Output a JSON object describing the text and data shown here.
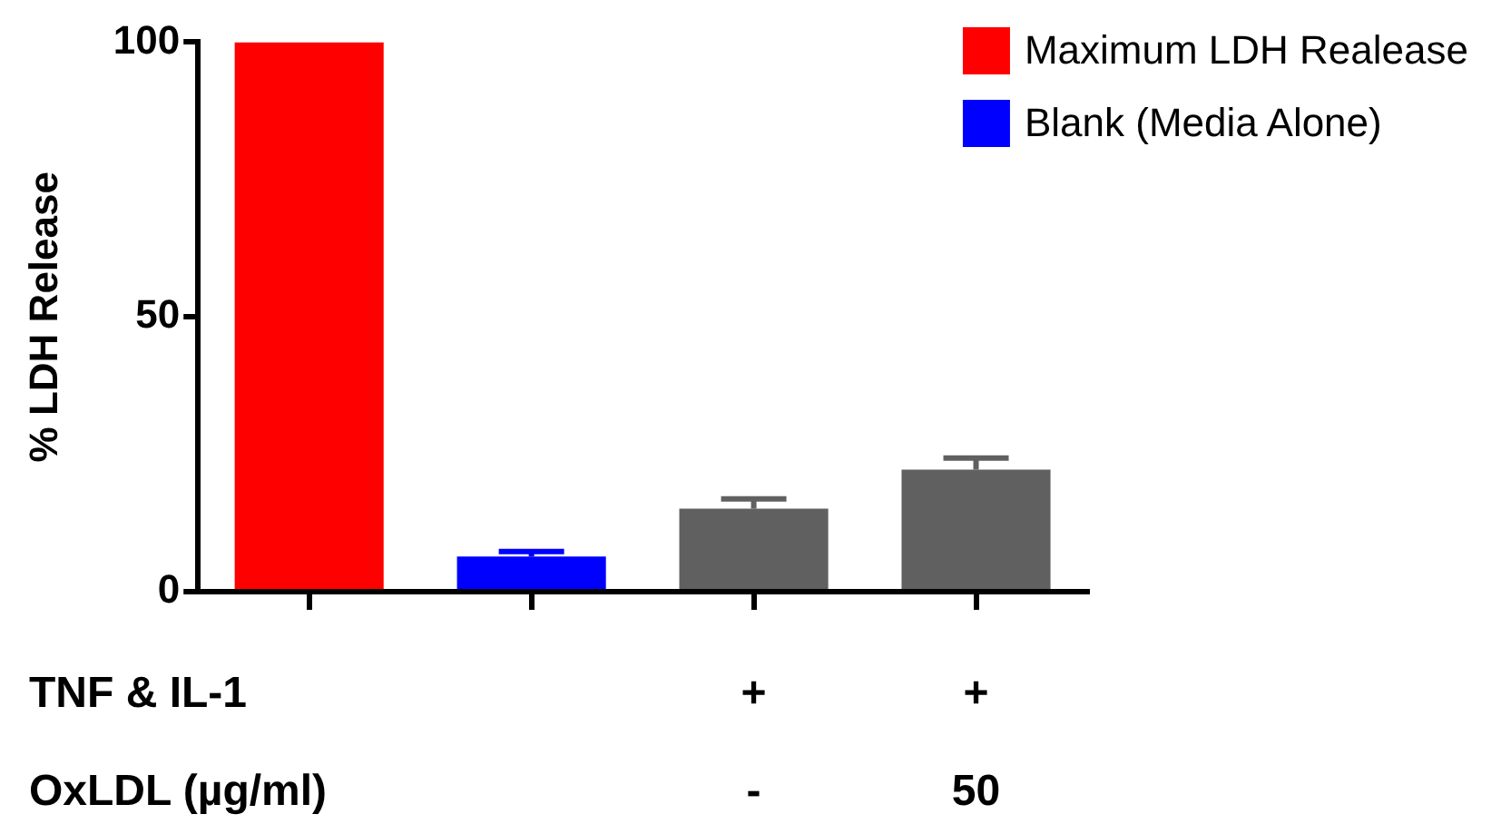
{
  "chart_data": {
    "type": "bar",
    "ylabel": "% LDH Release",
    "categories": [
      null,
      null,
      "+\n-",
      "+\n50"
    ],
    "series": [
      {
        "name": "Maximum LDH Realease",
        "color": "#ff0000",
        "values": [
          100,
          null,
          null,
          null
        ]
      },
      {
        "name": "Blank (Media Alone)",
        "color": "#0000ff",
        "values": [
          null,
          6.4,
          null,
          null
        ],
        "errors": [
          null,
          [
            6.4,
            7.3
          ],
          null,
          null
        ]
      },
      {
        "color": "#606060",
        "values": [
          null,
          null,
          15.1,
          22.2
        ],
        "errors": [
          null,
          null,
          [
            15.1,
            16.9
          ],
          [
            22.2,
            24.3
          ]
        ]
      }
    ],
    "annotations": [
      "TNF & IL-1",
      "OxLDL (µg/ml)"
    ],
    "ylim": [
      0,
      100
    ],
    "yticks": [
      0,
      50,
      100
    ],
    "grid": false,
    "legend": "top right"
  }
}
